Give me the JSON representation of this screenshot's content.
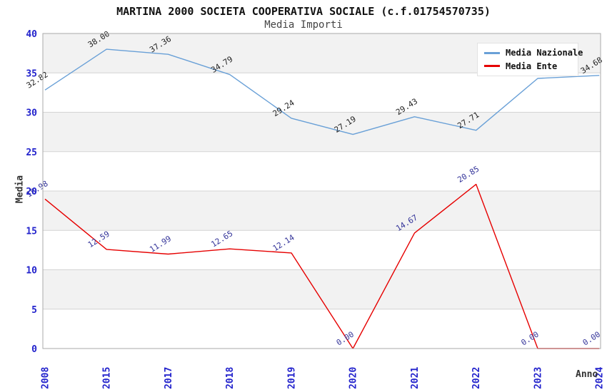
{
  "header": {
    "title": "MARTINA 2000 SOCIETA COOPERATIVA SOCIALE (c.f.01754570735)",
    "subtitle": "Media Importi"
  },
  "colors": {
    "nazionale_line": "#69a0d7",
    "ente_line": "#e60000",
    "nazionale_point_label": "#1f1f1f",
    "ente_point_label": "#333399",
    "tick_label": "#2222cc",
    "grid_band": "#f2f2f2",
    "gridline": "#d4d4d4",
    "plot_border": "#aaaaaa",
    "axis_title": "#333333"
  },
  "chart_data": {
    "type": "line",
    "title": "MARTINA 2000 SOCIETA COOPERATIVA SOCIALE (c.f.01754570735)",
    "subtitle": "Media Importi",
    "xlabel": "Anno",
    "ylabel": "Media",
    "categories": [
      "2008",
      "2015",
      "2017",
      "2018",
      "2019",
      "2020",
      "2021",
      "2022",
      "2023",
      "2024"
    ],
    "ylim": [
      0,
      40
    ],
    "ytick_step": 5,
    "y_tick_labels": [
      "0",
      "5",
      "10",
      "15",
      "20",
      "25",
      "30",
      "35",
      "40"
    ],
    "grid": "horizontal-bands-alternating",
    "legend_position": "top-right-inside",
    "series": [
      {
        "name": "Media Nazionale",
        "color": "#69a0d7",
        "label_color": "#1f1f1f",
        "values": [
          32.82,
          38.0,
          37.36,
          34.79,
          29.24,
          27.19,
          29.43,
          27.71,
          34.3,
          34.68
        ],
        "point_labels": [
          "32.82",
          "38.00",
          "37.36",
          "34.79",
          "29.24",
          "27.19",
          "29.43",
          "27.71",
          "",
          "34.68"
        ]
      },
      {
        "name": "Media Ente",
        "color": "#e60000",
        "label_color": "#333399",
        "values": [
          18.98,
          12.59,
          11.99,
          12.65,
          12.14,
          0.0,
          14.67,
          20.85,
          0.0,
          0.0
        ],
        "point_labels": [
          "18.98",
          "12.59",
          "11.99",
          "12.65",
          "12.14",
          "0.00",
          "14.67",
          "20.85",
          "0.00",
          "0.00"
        ]
      }
    ]
  }
}
